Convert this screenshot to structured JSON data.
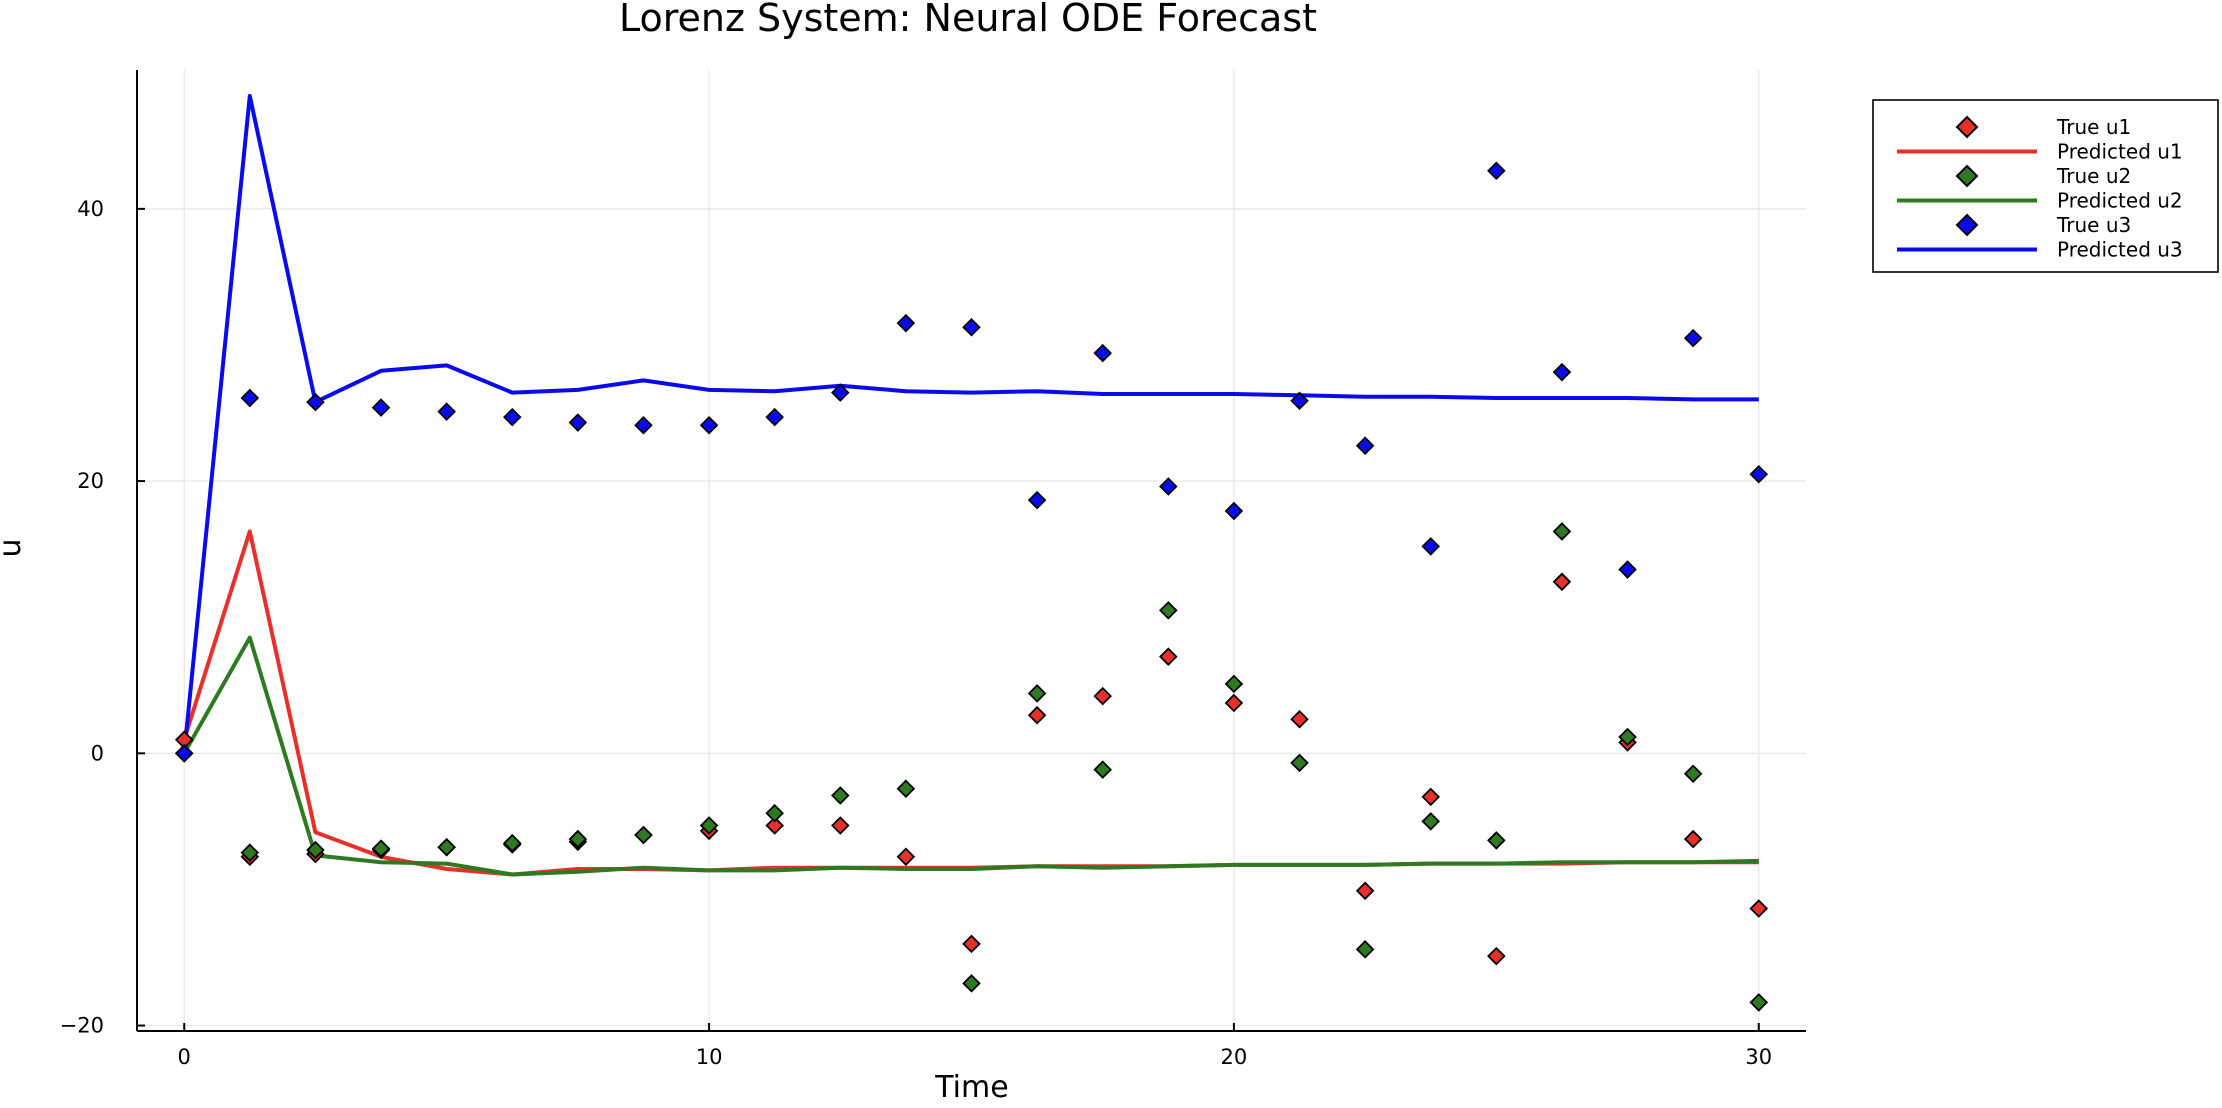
{
  "chart_data": {
    "type": "line",
    "title": "Lorenz System: Neural ODE Forecast",
    "xlabel": "Time",
    "ylabel": "u",
    "xlim": [
      -0.9,
      30.9
    ],
    "ylim": [
      -20.4,
      50.2
    ],
    "xticks": [
      0,
      10,
      20,
      30
    ],
    "yticks": [
      -20,
      0,
      20,
      40
    ],
    "grid": true,
    "legend_position": "top-right-outside",
    "series": [
      {
        "name": "True u1",
        "kind": "scatter",
        "marker": "diamond",
        "color": "#e8302a",
        "x": [
          0,
          1.25,
          2.5,
          3.75,
          5.0,
          6.25,
          7.5,
          8.75,
          10.0,
          11.25,
          12.5,
          13.75,
          15.0,
          16.25,
          17.5,
          18.75,
          20.0,
          21.25,
          22.5,
          23.75,
          25.0,
          26.25,
          27.5,
          28.75,
          30.0
        ],
        "y": [
          1.0,
          -7.6,
          -7.4,
          -7.1,
          -6.9,
          -6.7,
          -6.5,
          -6.0,
          -5.7,
          -5.3,
          -5.3,
          -7.6,
          -14.0,
          2.8,
          4.2,
          7.1,
          3.7,
          2.5,
          -10.1,
          -3.2,
          -14.9,
          12.6,
          0.8,
          -6.3,
          -11.4
        ]
      },
      {
        "name": "Predicted u1",
        "kind": "line",
        "color": "#e8302a",
        "x": [
          0,
          1.25,
          2.5,
          3.75,
          5.0,
          6.25,
          7.5,
          8.75,
          10.0,
          11.25,
          12.5,
          13.75,
          15.0,
          16.25,
          17.5,
          18.75,
          20.0,
          21.25,
          22.5,
          23.75,
          25.0,
          26.25,
          27.5,
          28.75,
          30.0
        ],
        "y": [
          1.0,
          16.3,
          -5.8,
          -7.6,
          -8.5,
          -8.9,
          -8.5,
          -8.5,
          -8.6,
          -8.4,
          -8.4,
          -8.4,
          -8.4,
          -8.3,
          -8.3,
          -8.3,
          -8.2,
          -8.2,
          -8.2,
          -8.1,
          -8.1,
          -8.1,
          -8.0,
          -8.0,
          -8.0
        ]
      },
      {
        "name": "True u2",
        "kind": "scatter",
        "marker": "diamond",
        "color": "#2e7a22",
        "x": [
          0,
          1.25,
          2.5,
          3.75,
          5.0,
          6.25,
          7.5,
          8.75,
          10.0,
          11.25,
          12.5,
          13.75,
          15.0,
          16.25,
          17.5,
          18.75,
          20.0,
          21.25,
          22.5,
          23.75,
          25.0,
          26.25,
          27.5,
          28.75,
          30.0
        ],
        "y": [
          0.0,
          -7.3,
          -7.1,
          -7.0,
          -6.9,
          -6.6,
          -6.3,
          -6.0,
          -5.3,
          -4.4,
          -3.1,
          -2.6,
          -16.9,
          4.4,
          -1.2,
          10.5,
          5.1,
          -0.7,
          -14.4,
          -5.0,
          -6.4,
          16.3,
          1.2,
          -1.5,
          -18.3
        ]
      },
      {
        "name": "Predicted u2",
        "kind": "line",
        "color": "#2e7a22",
        "x": [
          0,
          1.25,
          2.5,
          3.75,
          5.0,
          6.25,
          7.5,
          8.75,
          10.0,
          11.25,
          12.5,
          13.75,
          15.0,
          16.25,
          17.5,
          18.75,
          20.0,
          21.25,
          22.5,
          23.75,
          25.0,
          26.25,
          27.5,
          28.75,
          30.0
        ],
        "y": [
          0.0,
          8.5,
          -7.5,
          -8.0,
          -8.1,
          -8.9,
          -8.7,
          -8.4,
          -8.6,
          -8.6,
          -8.4,
          -8.5,
          -8.5,
          -8.3,
          -8.4,
          -8.3,
          -8.2,
          -8.2,
          -8.2,
          -8.1,
          -8.1,
          -8.0,
          -8.0,
          -8.0,
          -7.9
        ]
      },
      {
        "name": "True u3",
        "kind": "scatter",
        "marker": "diamond",
        "color": "#0a0aee",
        "x": [
          0,
          1.25,
          2.5,
          3.75,
          5.0,
          6.25,
          7.5,
          8.75,
          10.0,
          11.25,
          12.5,
          13.75,
          15.0,
          16.25,
          17.5,
          18.75,
          20.0,
          21.25,
          22.5,
          23.75,
          25.0,
          26.25,
          27.5,
          28.75,
          30.0
        ],
        "y": [
          0.0,
          26.1,
          25.8,
          25.4,
          25.1,
          24.7,
          24.3,
          24.1,
          24.1,
          24.7,
          26.5,
          31.6,
          31.3,
          18.6,
          29.4,
          19.6,
          17.8,
          25.9,
          22.6,
          15.2,
          42.8,
          28.0,
          13.5,
          30.5,
          20.5
        ]
      },
      {
        "name": "Predicted u3",
        "kind": "line",
        "color": "#0a0aee",
        "x": [
          0,
          1.25,
          2.5,
          3.75,
          5.0,
          6.25,
          7.5,
          8.75,
          10.0,
          11.25,
          12.5,
          13.75,
          15.0,
          16.25,
          17.5,
          18.75,
          20.0,
          21.25,
          22.5,
          23.75,
          25.0,
          26.25,
          27.5,
          28.75,
          30.0
        ],
        "y": [
          0.0,
          48.3,
          25.8,
          28.1,
          28.5,
          26.5,
          26.7,
          27.4,
          26.7,
          26.6,
          27.0,
          26.6,
          26.5,
          26.6,
          26.4,
          26.4,
          26.4,
          26.3,
          26.2,
          26.2,
          26.1,
          26.1,
          26.1,
          26.0,
          26.0
        ]
      }
    ]
  }
}
